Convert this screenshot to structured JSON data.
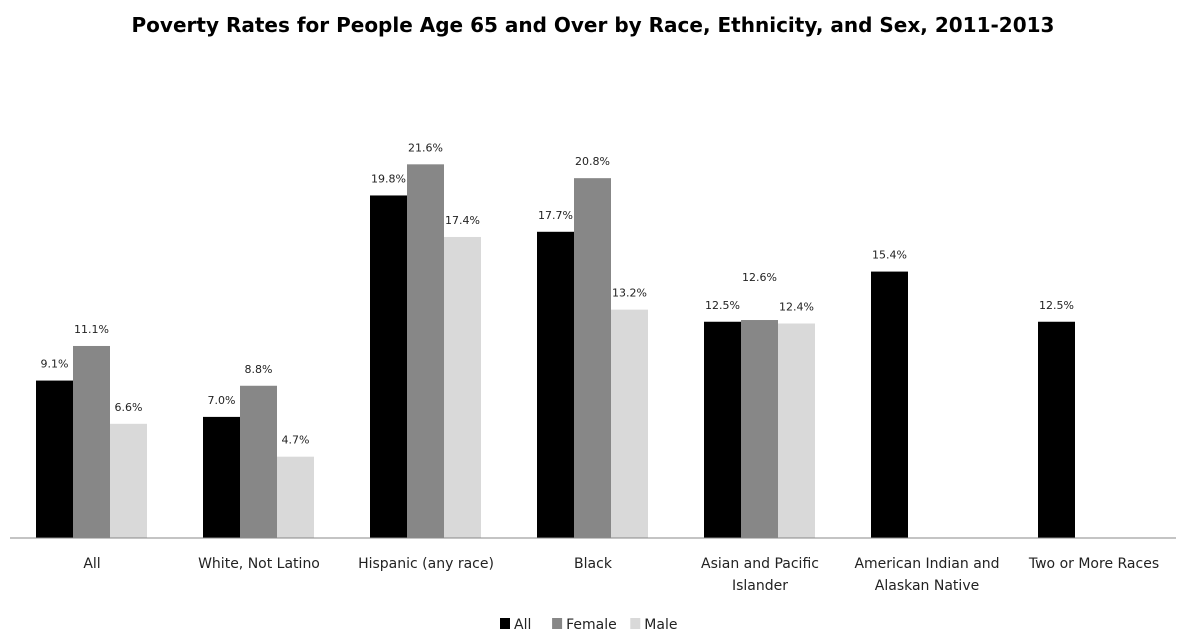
{
  "chart_data": {
    "type": "bar",
    "title": "Poverty Rates for People Age 65 and Over by Race, Ethnicity, and Sex, 2011-2013",
    "xlabel": "",
    "ylabel": "",
    "ylim": [
      0,
      24
    ],
    "grid": false,
    "legend_position": "bottom",
    "categories": [
      "All",
      "White, Not Latino",
      "Hispanic (any race)",
      "Black",
      "Asian and Pacific Islander",
      "American Indian and Alaskan Native",
      "Two or More Races"
    ],
    "series": [
      {
        "name": "All",
        "color": "#000000",
        "values": [
          9.1,
          7.0,
          19.8,
          17.7,
          12.5,
          15.4,
          12.5
        ],
        "labels": [
          "9.1%",
          "7.0%",
          "19.8%",
          "17.7%",
          "12.5%",
          "15.4%",
          "12.5%"
        ]
      },
      {
        "name": "Female",
        "color": "#878787",
        "values": [
          11.1,
          8.8,
          21.6,
          20.8,
          12.6,
          null,
          null
        ],
        "labels": [
          "11.1%",
          "8.8%",
          "21.6%",
          "20.8%",
          "12.6%",
          null,
          null
        ]
      },
      {
        "name": "Male",
        "color": "#d9d9d9",
        "values": [
          6.6,
          4.7,
          17.4,
          13.2,
          12.4,
          null,
          null
        ],
        "labels": [
          "6.6%",
          "4.7%",
          "17.4%",
          "13.2%",
          "12.4%",
          null,
          null
        ]
      }
    ]
  }
}
